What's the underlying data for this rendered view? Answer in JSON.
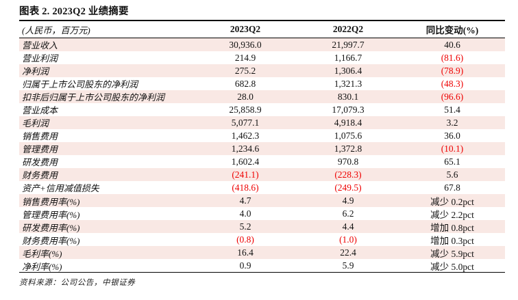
{
  "title": "图表 2. 2023Q2 业绩摘要",
  "table": {
    "unit_label": "(人民币，百万元)",
    "columns": [
      "2023Q2",
      "2022Q2",
      "同比变动(%)"
    ],
    "rows": [
      {
        "label": "营业收入",
        "q2_2023": "30,936.0",
        "q2_2022": "21,997.7",
        "yoy": "40.6"
      },
      {
        "label": "营业利润",
        "q2_2023": "214.9",
        "q2_2022": "1,166.7",
        "yoy": "(81.6)"
      },
      {
        "label": "净利润",
        "q2_2023": "275.2",
        "q2_2022": "1,306.4",
        "yoy": "(78.9)"
      },
      {
        "label": "归属于上市公司股东的净利润",
        "q2_2023": "682.8",
        "q2_2022": "1,321.3",
        "yoy": "(48.3)"
      },
      {
        "label": "扣非后归属于上市公司股东的净利润",
        "q2_2023": "28.0",
        "q2_2022": "830.1",
        "yoy": "(96.6)"
      },
      {
        "label": "营业成本",
        "q2_2023": "25,858.9",
        "q2_2022": "17,079.3",
        "yoy": "51.4"
      },
      {
        "label": "毛利润",
        "q2_2023": "5,077.1",
        "q2_2022": "4,918.4",
        "yoy": "3.2"
      },
      {
        "label": "销售费用",
        "q2_2023": "1,462.3",
        "q2_2022": "1,075.6",
        "yoy": "36.0"
      },
      {
        "label": "管理费用",
        "q2_2023": "1,234.6",
        "q2_2022": "1,372.8",
        "yoy": "(10.1)"
      },
      {
        "label": "研发费用",
        "q2_2023": "1,602.4",
        "q2_2022": "970.8",
        "yoy": "65.1"
      },
      {
        "label": "财务费用",
        "q2_2023": "(241.1)",
        "q2_2022": "(228.3)",
        "yoy": "5.6"
      },
      {
        "label": "资产+信用减值损失",
        "q2_2023": "(418.6)",
        "q2_2022": "(249.5)",
        "yoy": "67.8"
      },
      {
        "label": "销售费用率(%)",
        "q2_2023": "4.7",
        "q2_2022": "4.9",
        "yoy": "减少 0.2pct"
      },
      {
        "label": "管理费用率(%)",
        "q2_2023": "4.0",
        "q2_2022": "6.2",
        "yoy": "减少 2.2pct"
      },
      {
        "label": "研发费用率(%)",
        "q2_2023": "5.2",
        "q2_2022": "4.4",
        "yoy": "增加 0.8pct"
      },
      {
        "label": "财务费用率(%)",
        "q2_2023": "(0.8)",
        "q2_2022": "(1.0)",
        "yoy": "增加 0.3pct"
      },
      {
        "label": "毛利率(%)",
        "q2_2023": "16.4",
        "q2_2022": "22.4",
        "yoy": "减少 5.9pct"
      },
      {
        "label": "净利率(%)",
        "q2_2023": "0.9",
        "q2_2022": "5.9",
        "yoy": "减少 5.0pct"
      }
    ]
  },
  "source_note": "资料来源：公司公告，中银证券",
  "colors": {
    "row_stripe": "#f9e8e4",
    "negative": "#ee0000",
    "rule": "#000000"
  }
}
